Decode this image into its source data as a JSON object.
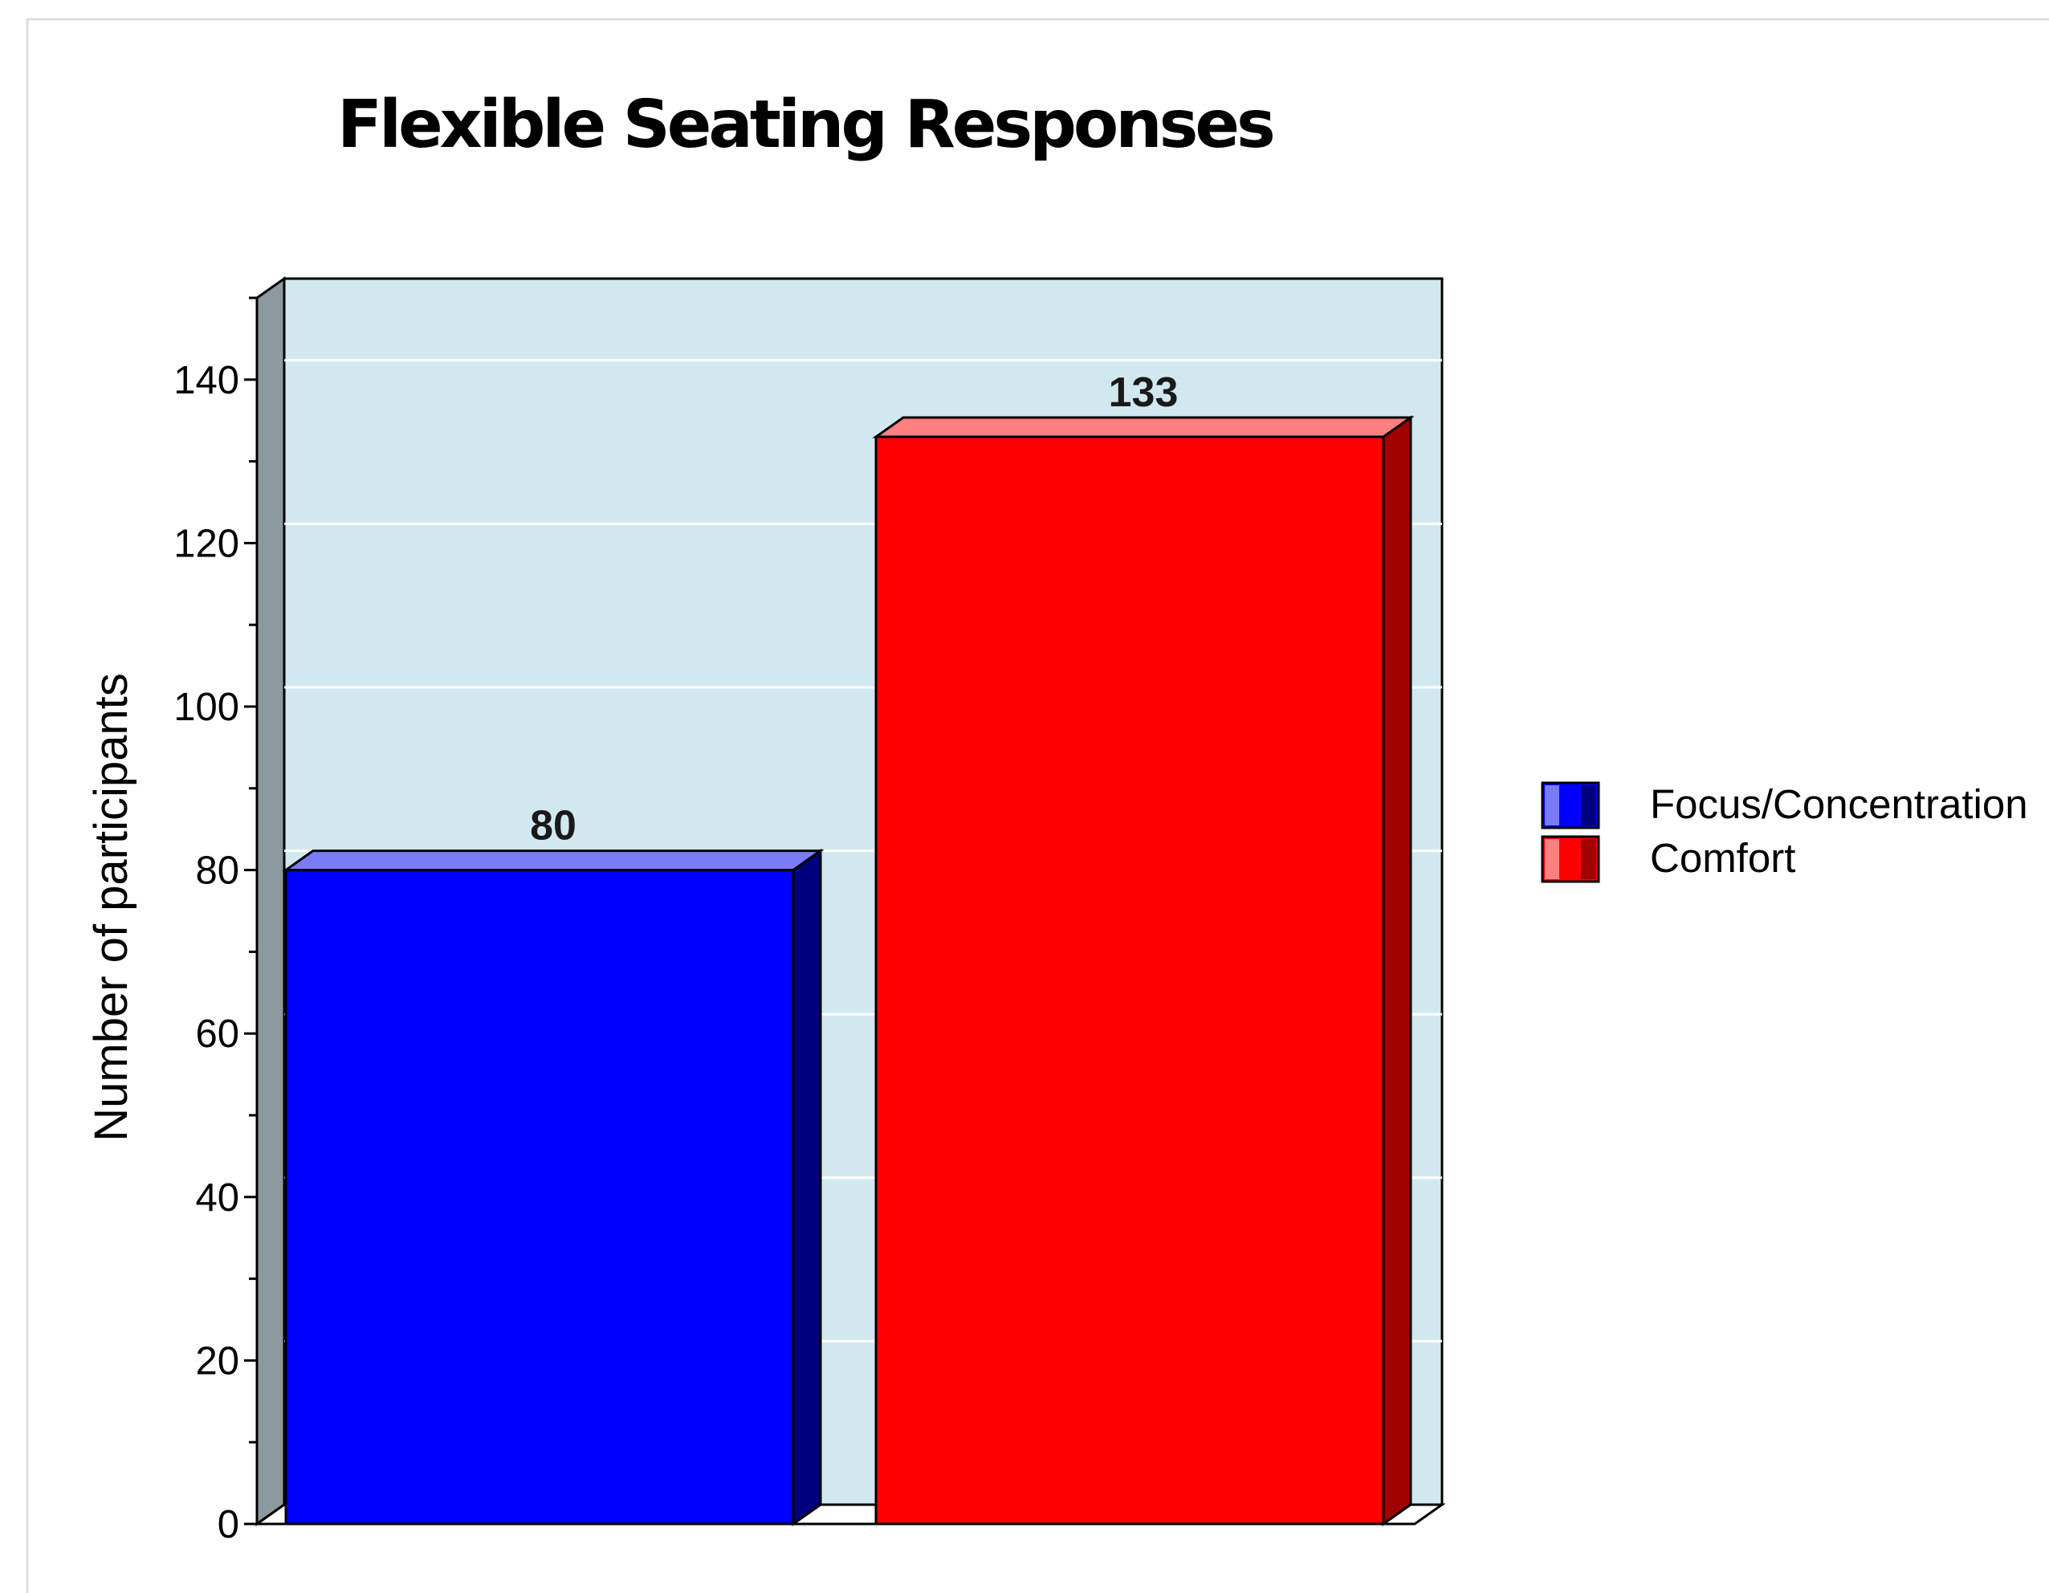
{
  "chart_data": {
    "type": "bar",
    "title": "Flexible Seating Responses",
    "xlabel": "",
    "ylabel": "Number of participants",
    "ylim": [
      0,
      150
    ],
    "yticks": [
      0,
      20,
      40,
      60,
      80,
      100,
      120,
      140
    ],
    "grid": true,
    "legend_position": "right",
    "plot_background": "#D2E8F0",
    "series": [
      {
        "name": "Focus/Concentration",
        "value": 80,
        "color": "#0000FF",
        "top_color": "#7B7BF8",
        "side_color": "#00007F"
      },
      {
        "name": "Comfort",
        "value": 133,
        "color": "#FF0000",
        "top_color": "#FF8080",
        "side_color": "#A00000"
      }
    ]
  }
}
